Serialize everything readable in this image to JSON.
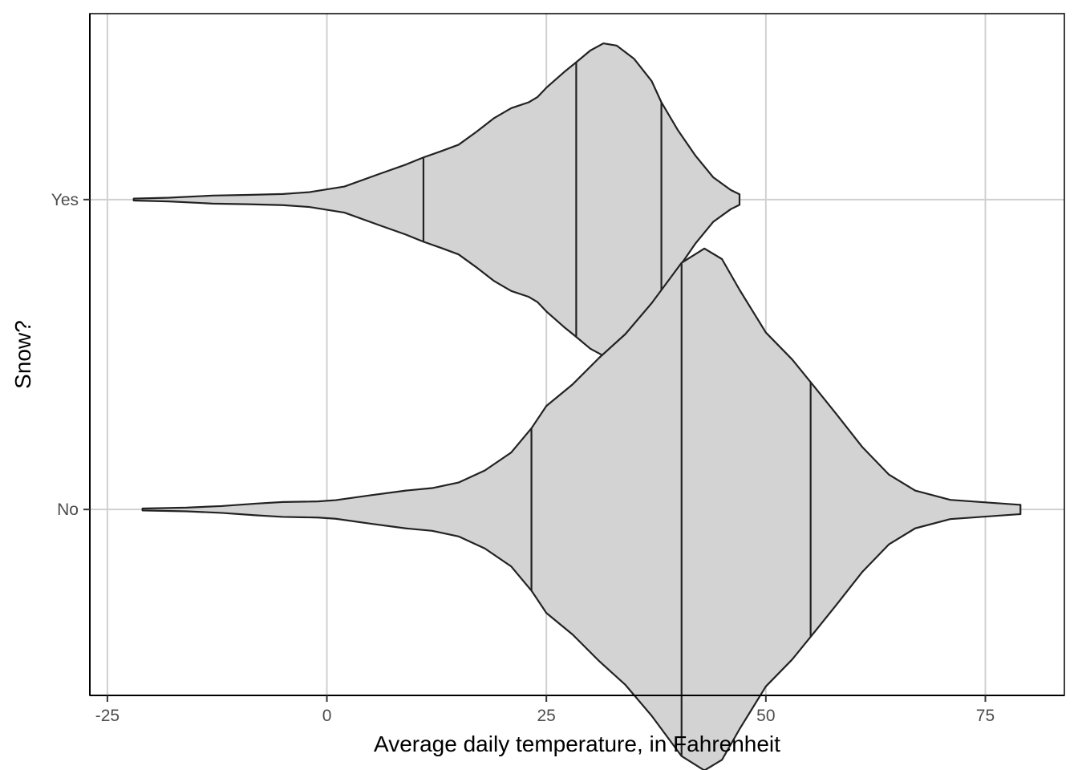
{
  "chart_data": {
    "type": "violin",
    "orientation": "horizontal",
    "title": "",
    "xlabel": "Average daily temperature, in Fahrenheit",
    "ylabel": "Snow?",
    "xlim": [
      -27,
      84
    ],
    "x_ticks": [
      -25,
      0,
      25,
      50,
      75
    ],
    "x_tick_labels": [
      "-25",
      "0",
      "25",
      "50",
      "75"
    ],
    "categories": [
      "No",
      "Yes"
    ],
    "grid": true,
    "legend": "none",
    "fill_color": "#d3d3d3",
    "outline_color": "#222222",
    "grid_color": "#d0d0d0",
    "series": [
      {
        "category": "Yes",
        "quantiles": [
          11.0,
          28.4,
          38.1
        ],
        "half_width_max": 0.45,
        "profile": [
          [
            -22.0,
            0.003
          ],
          [
            -18.0,
            0.006
          ],
          [
            -13.0,
            0.013
          ],
          [
            -9.0,
            0.015
          ],
          [
            -5.0,
            0.018
          ],
          [
            -2.0,
            0.024
          ],
          [
            2.0,
            0.042
          ],
          [
            6.0,
            0.083
          ],
          [
            9.0,
            0.113
          ],
          [
            11.0,
            0.136
          ],
          [
            13.0,
            0.156
          ],
          [
            15.0,
            0.177
          ],
          [
            17.0,
            0.218
          ],
          [
            19.0,
            0.262
          ],
          [
            21.0,
            0.295
          ],
          [
            23.0,
            0.314
          ],
          [
            24.0,
            0.331
          ],
          [
            25.0,
            0.361
          ],
          [
            27.0,
            0.411
          ],
          [
            28.4,
            0.443
          ],
          [
            30.0,
            0.481
          ],
          [
            31.5,
            0.504
          ],
          [
            33.0,
            0.497
          ],
          [
            35.0,
            0.454
          ],
          [
            37.0,
            0.382
          ],
          [
            38.1,
            0.314
          ],
          [
            40.0,
            0.223
          ],
          [
            42.0,
            0.141
          ],
          [
            44.0,
            0.072
          ],
          [
            46.0,
            0.031
          ],
          [
            47.0,
            0.017
          ]
        ]
      },
      {
        "category": "No",
        "quantiles": [
          23.3,
          40.4,
          55.1
        ],
        "half_width_max": 0.4,
        "profile": [
          [
            -21.0,
            0.003
          ],
          [
            -16.0,
            0.006
          ],
          [
            -12.0,
            0.011
          ],
          [
            -8.0,
            0.019
          ],
          [
            -5.0,
            0.024
          ],
          [
            -1.0,
            0.026
          ],
          [
            1.0,
            0.03
          ],
          [
            5.0,
            0.046
          ],
          [
            9.0,
            0.061
          ],
          [
            12.0,
            0.069
          ],
          [
            15.0,
            0.087
          ],
          [
            18.0,
            0.126
          ],
          [
            21.0,
            0.184
          ],
          [
            23.3,
            0.262
          ],
          [
            25.0,
            0.334
          ],
          [
            28.0,
            0.404
          ],
          [
            31.0,
            0.489
          ],
          [
            34.0,
            0.566
          ],
          [
            37.0,
            0.666
          ],
          [
            40.4,
            0.796
          ],
          [
            43.0,
            0.842
          ],
          [
            45.0,
            0.808
          ],
          [
            47.0,
            0.709
          ],
          [
            50.0,
            0.571
          ],
          [
            53.0,
            0.484
          ],
          [
            55.1,
            0.411
          ],
          [
            58.0,
            0.309
          ],
          [
            61.0,
            0.201
          ],
          [
            64.0,
            0.113
          ],
          [
            67.0,
            0.061
          ],
          [
            71.0,
            0.031
          ],
          [
            75.0,
            0.023
          ],
          [
            79.0,
            0.015
          ]
        ]
      }
    ]
  }
}
